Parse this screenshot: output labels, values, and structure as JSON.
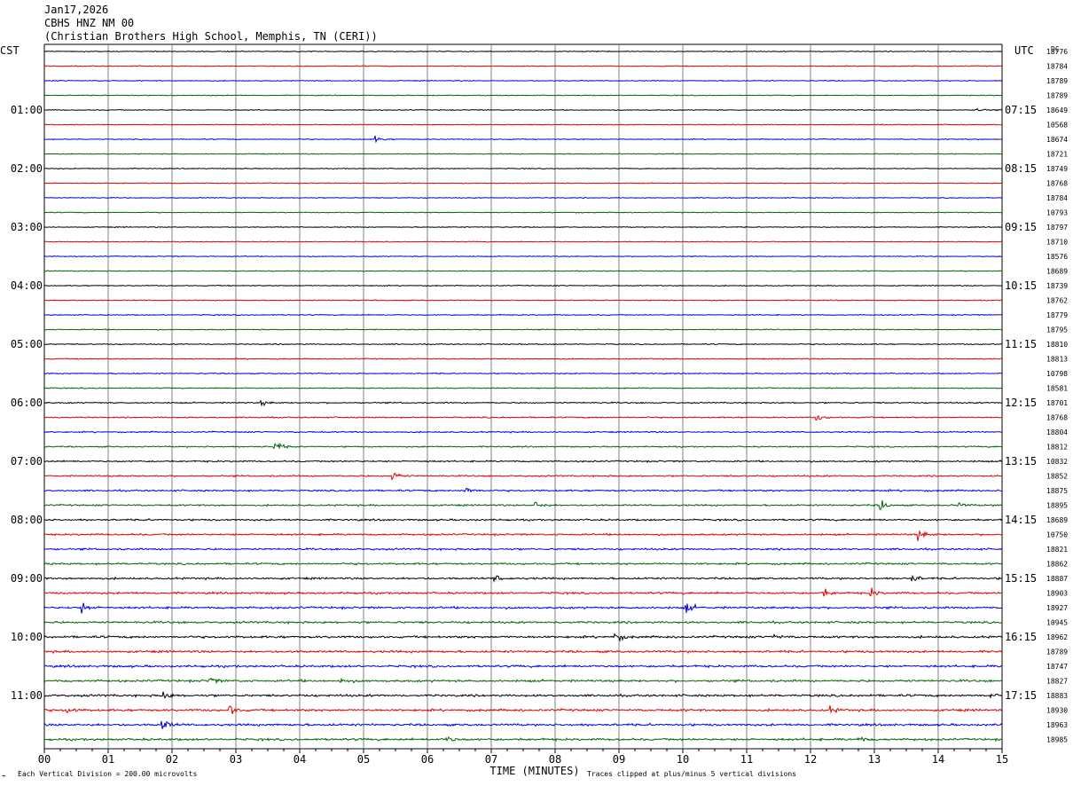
{
  "header": {
    "date": "Jan17,2026",
    "station": "CBHS HNZ NM 00",
    "location": "(Christian Brothers High School, Memphis, TN (CERI))"
  },
  "chart_data": {
    "type": "line",
    "title": "Jan17,2026 CBHS HNZ NM 00 (Christian Brothers High School, Memphis, TN (CERI))",
    "xlabel": "TIME (MINUTES)",
    "xlim": [
      0,
      15
    ],
    "x_ticks": [
      "00",
      "01",
      "02",
      "03",
      "04",
      "05",
      "06",
      "07",
      "08",
      "09",
      "10",
      "11",
      "12",
      "13",
      "14",
      "15"
    ],
    "left_axis_label": "CST",
    "right_axis_label": "UTC",
    "dc_label": "DC",
    "left_hour_labels": [
      "01:00",
      "02:00",
      "03:00",
      "04:00",
      "05:00",
      "06:00",
      "07:00",
      "08:00",
      "09:00",
      "10:00",
      "11:00"
    ],
    "right_hour_labels": [
      "07:15",
      "08:15",
      "09:15",
      "10:15",
      "11:15",
      "12:15",
      "13:15",
      "14:15",
      "15:15",
      "16:15",
      "17:15"
    ],
    "trace_colors": [
      "#000000",
      "#e00000",
      "#0000e0",
      "#006600"
    ],
    "minutes_per_trace": 15,
    "num_traces": 48,
    "dc_offsets": [
      18776,
      18784,
      18789,
      18789,
      18649,
      10568,
      18674,
      18721,
      18749,
      18768,
      18784,
      10793,
      18797,
      18710,
      18576,
      18689,
      18739,
      18762,
      18779,
      18795,
      18810,
      18813,
      10798,
      18581,
      18701,
      18768,
      18804,
      18812,
      10832,
      18852,
      18875,
      18895,
      18689,
      10750,
      18821,
      18862,
      18887,
      18903,
      18927,
      10945,
      18962,
      18789,
      18747,
      18827,
      18883,
      18930,
      18963,
      18985
    ],
    "noise_level": [
      0.2,
      0.2,
      0.2,
      0.2,
      0.2,
      0.2,
      0.2,
      0.2,
      0.2,
      0.2,
      0.2,
      0.2,
      0.2,
      0.2,
      0.2,
      0.2,
      0.22,
      0.22,
      0.22,
      0.22,
      0.24,
      0.24,
      0.24,
      0.24,
      0.3,
      0.3,
      0.3,
      0.3,
      0.35,
      0.35,
      0.38,
      0.38,
      0.4,
      0.4,
      0.42,
      0.42,
      0.45,
      0.45,
      0.48,
      0.48,
      0.5,
      0.5,
      0.5,
      0.5,
      0.5,
      0.5,
      0.5,
      0.5
    ],
    "events": [
      {
        "trace": 4,
        "minute": 14.6,
        "amplitude": 1.2
      },
      {
        "trace": 6,
        "minute": 5.2,
        "amplitude": 1.5
      },
      {
        "trace": 24,
        "minute": 3.4,
        "amplitude": 1.3
      },
      {
        "trace": 25,
        "minute": 12.1,
        "amplitude": 1.8
      },
      {
        "trace": 27,
        "minute": 3.6,
        "amplitude": 3.5
      },
      {
        "trace": 29,
        "minute": 5.45,
        "amplitude": 2.8
      },
      {
        "trace": 30,
        "minute": 6.6,
        "amplitude": 2.4
      },
      {
        "trace": 31,
        "minute": 7.7,
        "amplitude": 2.0
      },
      {
        "trace": 31,
        "minute": 13.1,
        "amplitude": 2.6
      },
      {
        "trace": 31,
        "minute": 14.3,
        "amplitude": 1.5
      },
      {
        "trace": 33,
        "minute": 13.7,
        "amplitude": 2.5
      },
      {
        "trace": 36,
        "minute": 7.05,
        "amplitude": 2.0
      },
      {
        "trace": 36,
        "minute": 13.6,
        "amplitude": 1.6
      },
      {
        "trace": 37,
        "minute": 12.2,
        "amplitude": 2.0
      },
      {
        "trace": 37,
        "minute": 12.95,
        "amplitude": 2.0
      },
      {
        "trace": 38,
        "minute": 0.6,
        "amplitude": 2.5
      },
      {
        "trace": 38,
        "minute": 10.05,
        "amplitude": 2.8
      },
      {
        "trace": 40,
        "minute": 8.95,
        "amplitude": 2.2
      },
      {
        "trace": 40,
        "minute": 11.4,
        "amplitude": 1.8
      },
      {
        "trace": 43,
        "minute": 2.6,
        "amplitude": 1.5
      },
      {
        "trace": 43,
        "minute": 4.65,
        "amplitude": 1.4
      },
      {
        "trace": 44,
        "minute": 1.85,
        "amplitude": 2.5
      },
      {
        "trace": 44,
        "minute": 14.8,
        "amplitude": 1.4
      },
      {
        "trace": 45,
        "minute": 0.35,
        "amplitude": 2.0
      },
      {
        "trace": 45,
        "minute": 2.9,
        "amplitude": 2.8
      },
      {
        "trace": 45,
        "minute": 12.3,
        "amplitude": 1.6
      },
      {
        "trace": 46,
        "minute": 1.85,
        "amplitude": 3.0
      },
      {
        "trace": 47,
        "minute": 6.3,
        "amplitude": 1.6
      },
      {
        "trace": 47,
        "minute": 12.75,
        "amplitude": 1.4
      }
    ]
  },
  "footer": {
    "marker": "⌁",
    "scale_note": "Each Vertical Division =  200.00 microvolts",
    "clip_note": "Traces clipped at plus/minus 5 vertical divisions"
  }
}
